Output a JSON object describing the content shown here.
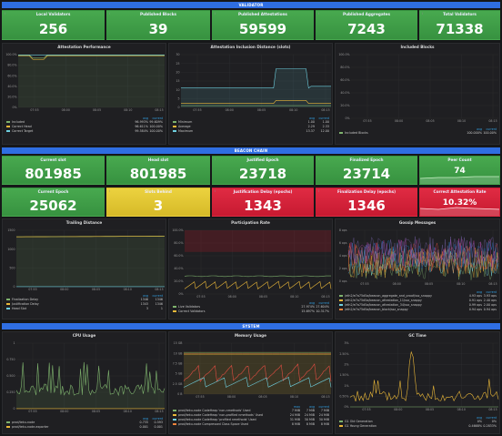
{
  "rows": {
    "validator": "VALIDATOR",
    "beacon": "BEACON CHAIN",
    "system": "SYSTEM"
  },
  "colors": {
    "accent": "#2f6ee2",
    "green": "#48a94f",
    "yellow": "#ecd23f",
    "red": "#e02b43"
  },
  "stats_top": [
    {
      "title": "Local Validators",
      "value": "256"
    },
    {
      "title": "Published Blocks",
      "value": "39"
    },
    {
      "title": "Published Attestations",
      "value": "59599"
    },
    {
      "title": "Published Aggregates",
      "value": "7243"
    },
    {
      "title": "Total Validators",
      "value": "71338"
    }
  ],
  "attestation_performance": {
    "title": "Attestation Performance",
    "yticks": [
      "100.0%",
      "80.0%",
      "60.0%",
      "40.0%",
      "20.0%",
      "0%"
    ],
    "xticks": [
      "07:55",
      "08:00",
      "08:05",
      "08:10",
      "08:15"
    ],
    "legend_head": [
      "avg",
      "current"
    ],
    "legend": [
      {
        "name": "Included",
        "avg": "96.993%",
        "current": "99.609%",
        "color": "#7eb26d"
      },
      {
        "name": "Correct Head",
        "avg": "96.611%",
        "current": "100.00%",
        "color": "#eab839"
      },
      {
        "name": "Correct Target",
        "avg": "99.584%",
        "current": "100.00%",
        "color": "#6ed0e0"
      }
    ]
  },
  "inclusion_distance": {
    "title": "Attestation Inclusion Distance (slots)",
    "yticks": [
      "30",
      "25",
      "20",
      "15",
      "10",
      "5",
      "0"
    ],
    "xticks": [
      "07:55",
      "08:00",
      "08:05",
      "08:10",
      "08:15"
    ],
    "legend_head": [
      "avg",
      "current"
    ],
    "legend": [
      {
        "name": "Minimum",
        "avg": "1.00",
        "current": "1.00",
        "color": "#7eb26d"
      },
      {
        "name": "Average",
        "avg": "2.29",
        "current": "2.33",
        "color": "#eab839"
      },
      {
        "name": "Maximum",
        "avg": "13.37",
        "current": "12.00",
        "color": "#6ed0e0"
      }
    ]
  },
  "included_blocks": {
    "title": "Included Blocks",
    "yticks": [
      "100.0%",
      "80.0%",
      "60.0%",
      "40.0%",
      "20.0%",
      "0%"
    ],
    "xticks": [
      "07:55",
      "08:00",
      "08:05",
      "08:10",
      "08:15"
    ],
    "legend_head": [
      "avg",
      "current"
    ],
    "legend": [
      {
        "name": "Included Blocks",
        "avg": "100.000%",
        "current": "100.00%",
        "color": "#7eb26d"
      }
    ]
  },
  "stats_beacon_1": [
    {
      "title": "Current slot",
      "value": "801985"
    },
    {
      "title": "Head slot",
      "value": "801985"
    },
    {
      "title": "Justified Epoch",
      "value": "23718"
    },
    {
      "title": "Finalized Epoch",
      "value": "23714"
    }
  ],
  "peer_count": {
    "title": "Peer Count",
    "value": "74"
  },
  "stats_beacon_2": [
    {
      "title": "Current Epoch",
      "value": "25062",
      "color": "green"
    },
    {
      "title": "Slots Behind",
      "value": "3",
      "color": "yellow"
    },
    {
      "title": "Justification Delay (epochs)",
      "value": "1343",
      "color": "red"
    },
    {
      "title": "Finalization Delay (epochs)",
      "value": "1346",
      "color": "red"
    }
  ],
  "correct_attestation_rate": {
    "title": "Correct Attestation Rate",
    "value": "10.32%"
  },
  "trailing_distance": {
    "title": "Trailing Distance",
    "yticks": [
      "1500",
      "1000",
      "500",
      "0"
    ],
    "xticks": [
      "07:55",
      "08:00",
      "08:05",
      "08:10",
      "08:15"
    ],
    "legend_head": [
      "avg",
      "current"
    ],
    "legend": [
      {
        "name": "Finalization Delay",
        "avg": "1346",
        "current": "1346",
        "color": "#7eb26d"
      },
      {
        "name": "Justification Delay",
        "avg": "1343",
        "current": "1346",
        "color": "#eab839"
      },
      {
        "name": "Head Slot",
        "avg": "3",
        "current": "1",
        "color": "#6ed0e0"
      }
    ]
  },
  "participation_rate": {
    "title": "Participation Rate",
    "yticks": [
      "100.0%",
      "80.0%",
      "60.0%",
      "40.0%",
      "20.0%",
      "0%"
    ],
    "xticks": [
      "07:55",
      "08:00",
      "08:05",
      "08:10",
      "08:15"
    ],
    "legend_head": [
      "avg",
      "current"
    ],
    "legend": [
      {
        "name": "Live Validators",
        "avg": "27.974%",
        "current": "27.604%",
        "color": "#7eb26d"
      },
      {
        "name": "Correct Validators",
        "avg": "15.697%",
        "current": "10.317%",
        "color": "#eab839"
      }
    ]
  },
  "gossip_messages": {
    "title": "Gossip Messages",
    "yticks": [
      "8 ops",
      "6 ops",
      "4 ops",
      "2 ops",
      "0 ops"
    ],
    "xticks": [
      "07:55",
      "08:00",
      "08:05",
      "08:10",
      "08:15"
    ],
    "legend_head": [
      "avg",
      "current"
    ],
    "legend": [
      {
        "name": "/eth2/e7a75d5a/beacon_aggregate_and_proof/ssz_snappy",
        "avg": "4.93 ops",
        "current": "3.93 ops",
        "color": "#7eb26d"
      },
      {
        "name": "/eth2/e7a75d5a/beacon_attestation_11/ssz_snappy",
        "avg": "0.91 ops",
        "current": "2.40 ops",
        "color": "#eab839"
      },
      {
        "name": "/eth2/e7a75d5a/beacon_attestation_34/ssz_snappy",
        "avg": "0.99 ops",
        "current": "2.00 ops",
        "color": "#6ed0e0"
      },
      {
        "name": "/eth2/e7a75d5a/beacon_block/ssz_snappy",
        "avg": "0.94 ops",
        "current": "0.94 ops",
        "color": "#ef843c"
      }
    ]
  },
  "cpu_usage": {
    "title": "CPU Usage",
    "yticks": [
      "1",
      "0.750",
      "0.500",
      "0.250",
      "0"
    ],
    "xticks": [
      "07:55",
      "08:00",
      "08:05",
      "08:10",
      "08:15"
    ],
    "legend_head": [
      "avg",
      "current"
    ],
    "legend": [
      {
        "name": "prod/teku-node",
        "avg": "0.735",
        "current": "0.593",
        "color": "#7eb26d"
      },
      {
        "name": "prod/teku-node-exporter",
        "avg": "0.001",
        "current": "0.001",
        "color": "#eab839"
      }
    ]
  },
  "memory_usage": {
    "title": "Memory Usage",
    "yticks": [
      "15 GB",
      "10 GB",
      "7.5 GB",
      "5 GB",
      "2.5 GB",
      "0 B"
    ],
    "xticks": [
      "07:55",
      "08:00",
      "08:05",
      "08:10",
      "08:15"
    ],
    "legend_head": [
      "max",
      "avg",
      "current"
    ],
    "legend": [
      {
        "name": "prod/teku-node CodeHeap 'non-nmethods' Used",
        "max": "7 MiB",
        "avg": "7 MiB",
        "current": "7 MiB",
        "color": "#7eb26d"
      },
      {
        "name": "prod/teku-node CodeHeap 'non-profiled nmethods' Used",
        "max": "24 MiB",
        "avg": "24 MiB",
        "current": "24 MiB",
        "color": "#eab839"
      },
      {
        "name": "prod/teku-node CodeHeap 'profiled nmethods' Used",
        "max": "31 MiB",
        "avg": "30 MiB",
        "current": "30 MiB",
        "color": "#6ed0e0"
      },
      {
        "name": "prod/teku-node Compressed Class Space Used",
        "max": "8 MiB",
        "avg": "8 MiB",
        "current": "8 MiB",
        "color": "#ef843c"
      }
    ]
  },
  "gc_time": {
    "title": "GC Time",
    "yticks": [
      "3%",
      "2.50%",
      "2%",
      "1.50%",
      "1%",
      "0.50%",
      "0%"
    ],
    "xticks": [
      "07:55",
      "08:00",
      "08:05",
      "08:10",
      "08:15"
    ],
    "legend_head": [
      "avg",
      "current"
    ],
    "legend": [
      {
        "name": "G1 Old Generation",
        "avg": "0%",
        "current": "0%",
        "color": "#7eb26d"
      },
      {
        "name": "G1 Young Generation",
        "avg": "0.4668%",
        "current": "0.2833%",
        "color": "#eab839"
      }
    ]
  }
}
